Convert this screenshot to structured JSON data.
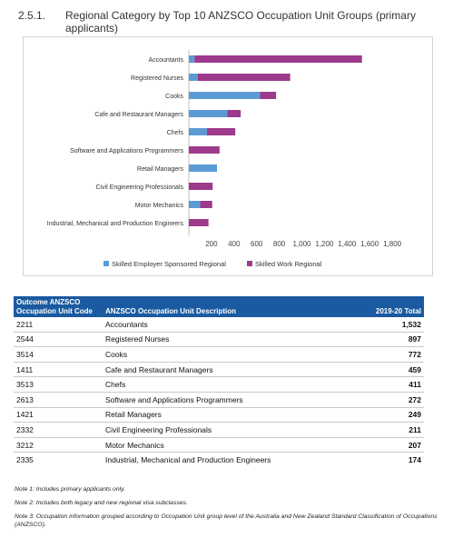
{
  "heading": {
    "number": "2.5.1.",
    "title": "Regional Category by Top 10 ANZSCO Occupation Unit Groups (primary applicants)"
  },
  "chart_data": {
    "type": "bar",
    "orientation": "horizontal",
    "stacked": true,
    "categories": [
      "Accountants",
      "Registered Nurses",
      "Cooks",
      "Cafe and Restaurant Managers",
      "Chefs",
      "Software and Applications Programmers",
      "Retail Managers",
      "Civil Engineering Professionals",
      "Motor Mechanics",
      "Industrial, Mechanical and Production Engineers"
    ],
    "series": [
      {
        "name": "Skilled Employer Sponsored Regional",
        "color": "#5b9bd5",
        "values": [
          50,
          80,
          630,
          340,
          160,
          0,
          249,
          0,
          100,
          0
        ]
      },
      {
        "name": "Skilled Work Regional",
        "color": "#9e3a8c",
        "values": [
          1482,
          817,
          142,
          119,
          251,
          272,
          0,
          211,
          107,
          174
        ]
      }
    ],
    "x_ticks": [
      "200",
      "400",
      "600",
      "800",
      "1,000",
      "1,200",
      "1,400",
      "1,600",
      "1,800"
    ],
    "xlim": [
      0,
      1800
    ],
    "legend_position": "bottom",
    "grid": false
  },
  "table": {
    "headers": {
      "code": "Outcome ANZSCO Occupation Unit Code",
      "description": "ANZSCO Occupation Unit Description",
      "total": "2019-20 Total"
    },
    "rows": [
      {
        "code": "2211",
        "description": "Accountants",
        "total": "1,532"
      },
      {
        "code": "2544",
        "description": "Registered Nurses",
        "total": "897"
      },
      {
        "code": "3514",
        "description": "Cooks",
        "total": "772"
      },
      {
        "code": "1411",
        "description": "Cafe and Restaurant Managers",
        "total": "459"
      },
      {
        "code": "3513",
        "description": "Chefs",
        "total": "411"
      },
      {
        "code": "2613",
        "description": "Software and Applications Programmers",
        "total": "272"
      },
      {
        "code": "1421",
        "description": "Retail Managers",
        "total": "249"
      },
      {
        "code": "2332",
        "description": "Civil Engineering Professionals",
        "total": "211"
      },
      {
        "code": "3212",
        "description": "Motor Mechanics",
        "total": "207"
      },
      {
        "code": "2335",
        "description": "Industrial, Mechanical and Production Engineers",
        "total": "174"
      }
    ]
  },
  "notes": [
    "Note 1: Includes primary applicants only.",
    "Note 2: Includes both legacy and new regional visa subclasses.",
    "Note 3: Occupation information grouped according to Occupation Unit group level of the Australia and New Zealand Standard Classification of Occupations (ANZSCO)."
  ]
}
